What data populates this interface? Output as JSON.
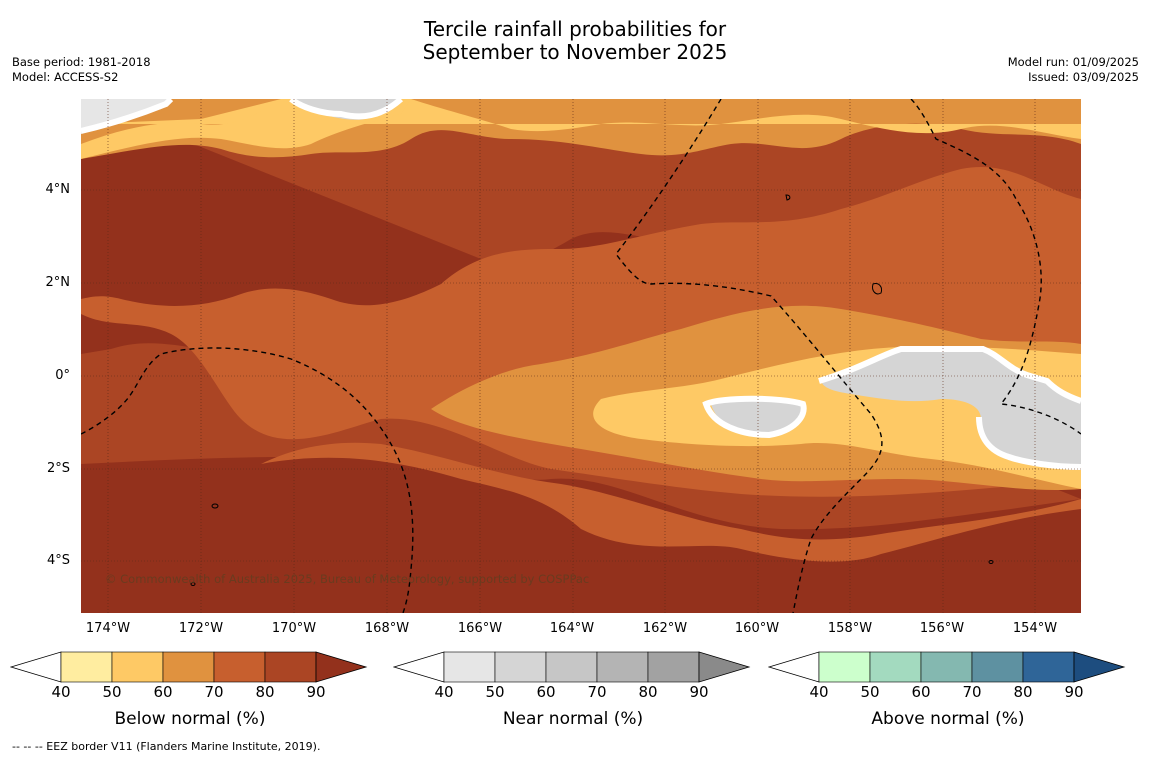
{
  "title": {
    "line1": "Tercile rainfall probabilities for",
    "line2": "September to November 2025"
  },
  "meta": {
    "base_period": "Base period: 1981-2018",
    "model": "Model: ACCESS-S2",
    "model_run": "Model run: 01/09/2025",
    "issued": "Issued: 03/09/2025"
  },
  "map": {
    "lat_labels": [
      "4°N",
      "2°N",
      "0°",
      "2°S",
      "4°S"
    ],
    "lon_labels": [
      "174°W",
      "172°W",
      "170°W",
      "168°W",
      "166°W",
      "164°W",
      "162°W",
      "160°W",
      "158°W",
      "156°W",
      "154°W"
    ],
    "copyright": "© Commonwealth of Australia 2025, Bureau of Meteorology, supported by COSPPac"
  },
  "colorbars": [
    {
      "name": "below",
      "title": "Below normal (%)",
      "ticks": [
        "40",
        "50",
        "60",
        "70",
        "80",
        "90"
      ],
      "colors": [
        "#ffeda0",
        "#fec965",
        "#e0923f",
        "#c75f2e",
        "#ab4524",
        "#93311c"
      ]
    },
    {
      "name": "near",
      "title": "Near normal (%)",
      "ticks": [
        "40",
        "50",
        "60",
        "70",
        "80",
        "90"
      ],
      "colors": [
        "#e6e6e6",
        "#d5d5d5",
        "#c6c6c6",
        "#b4b4b4",
        "#a2a2a2",
        "#8a8a8a"
      ]
    },
    {
      "name": "above",
      "title": "Above normal (%)",
      "ticks": [
        "40",
        "50",
        "60",
        "70",
        "80",
        "90"
      ],
      "colors": [
        "#ccffcc",
        "#a3dabf",
        "#84b8b0",
        "#5e91a1",
        "#2f6598",
        "#1d4d7f"
      ]
    }
  ],
  "footnote": "--  --  -- EEZ border V11 (Flanders Marine Institute, 2019)."
}
